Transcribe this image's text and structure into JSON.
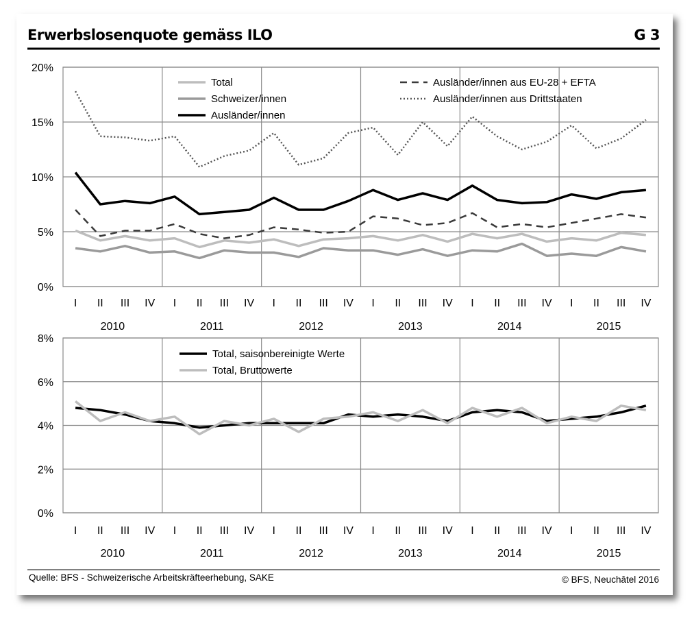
{
  "header": {
    "title": "Erwerbslosenquote gemäss ILO",
    "code": "G 3"
  },
  "footer": {
    "source": "Quelle: BFS - Schweizerische Arbeitskräfteerhebung, SAKE",
    "copyright": "© BFS, Neuchâtel 2016"
  },
  "colors": {
    "total": "#bdbdbd",
    "schweizer": "#9a9a9a",
    "auslaender": "#000000",
    "eu": "#3a3a3a",
    "dritt": "#555555",
    "grid": "#8a8a8a"
  },
  "chart_data": [
    {
      "type": "line",
      "x_quarters": [
        "I",
        "II",
        "III",
        "IV",
        "I",
        "II",
        "III",
        "IV",
        "I",
        "II",
        "III",
        "IV",
        "I",
        "II",
        "III",
        "IV",
        "I",
        "II",
        "III",
        "IV",
        "I",
        "II",
        "III",
        "IV"
      ],
      "x_years": [
        "2010",
        "2011",
        "2012",
        "2013",
        "2014",
        "2015"
      ],
      "y_ticks": [
        "0%",
        "5%",
        "10%",
        "15%",
        "20%"
      ],
      "ylim": [
        0,
        20
      ],
      "legend_position": "top",
      "series": [
        {
          "name": "Total",
          "style": "solid-light",
          "values": [
            5.1,
            4.2,
            4.6,
            4.2,
            4.4,
            3.6,
            4.2,
            4.0,
            4.3,
            3.7,
            4.3,
            4.4,
            4.6,
            4.2,
            4.7,
            4.1,
            4.8,
            4.4,
            4.8,
            4.1,
            4.4,
            4.2,
            4.9,
            4.7
          ]
        },
        {
          "name": "Schweizer/innen",
          "style": "solid-mid",
          "values": [
            3.5,
            3.2,
            3.7,
            3.1,
            3.2,
            2.6,
            3.3,
            3.1,
            3.1,
            2.7,
            3.5,
            3.3,
            3.3,
            2.9,
            3.4,
            2.8,
            3.3,
            3.2,
            3.9,
            2.8,
            3.0,
            2.8,
            3.6,
            3.2
          ]
        },
        {
          "name": "Ausländer/innen",
          "style": "solid-bold",
          "values": [
            10.4,
            7.5,
            7.8,
            7.6,
            8.2,
            6.6,
            6.8,
            7.0,
            8.1,
            7.0,
            7.0,
            7.8,
            8.8,
            7.9,
            8.5,
            7.9,
            9.2,
            7.9,
            7.6,
            7.7,
            8.4,
            8.0,
            8.6,
            8.8
          ]
        },
        {
          "name": "Ausländer/innen aus EU-28 + EFTA",
          "style": "dashed",
          "values": [
            7.0,
            4.6,
            5.1,
            5.1,
            5.7,
            4.8,
            4.4,
            4.7,
            5.4,
            5.2,
            4.9,
            5.0,
            6.4,
            6.2,
            5.6,
            5.8,
            6.7,
            5.4,
            5.7,
            5.4,
            5.8,
            6.2,
            6.6,
            6.3
          ]
        },
        {
          "name": "Ausländer/innen aus Drittstaaten",
          "style": "dotted",
          "values": [
            17.8,
            13.7,
            13.6,
            13.3,
            13.7,
            10.9,
            11.9,
            12.4,
            14.0,
            11.1,
            11.7,
            14.0,
            14.5,
            12.0,
            15.0,
            12.8,
            15.5,
            13.7,
            12.5,
            13.2,
            14.7,
            12.6,
            13.5,
            15.2
          ]
        }
      ]
    },
    {
      "type": "line",
      "x_quarters": [
        "I",
        "II",
        "III",
        "IV",
        "I",
        "II",
        "III",
        "IV",
        "I",
        "II",
        "III",
        "IV",
        "I",
        "II",
        "III",
        "IV",
        "I",
        "II",
        "III",
        "IV",
        "I",
        "II",
        "III",
        "IV"
      ],
      "x_years": [
        "2010",
        "2011",
        "2012",
        "2013",
        "2014",
        "2015"
      ],
      "y_ticks": [
        "0%",
        "2%",
        "4%",
        "6%",
        "8%"
      ],
      "ylim": [
        0,
        8
      ],
      "legend_position": "top",
      "series": [
        {
          "name": "Total, saisonbereinigte Werte",
          "style": "solid-bold",
          "values": [
            4.8,
            4.7,
            4.5,
            4.2,
            4.1,
            3.9,
            4.0,
            4.1,
            4.1,
            4.1,
            4.1,
            4.5,
            4.4,
            4.5,
            4.4,
            4.2,
            4.6,
            4.7,
            4.6,
            4.2,
            4.3,
            4.4,
            4.6,
            4.9
          ]
        },
        {
          "name": "Total, Bruttowerte",
          "style": "solid-light",
          "values": [
            5.1,
            4.2,
            4.6,
            4.2,
            4.4,
            3.6,
            4.2,
            4.0,
            4.3,
            3.7,
            4.3,
            4.4,
            4.6,
            4.2,
            4.7,
            4.1,
            4.8,
            4.4,
            4.8,
            4.1,
            4.4,
            4.2,
            4.9,
            4.7
          ]
        }
      ]
    }
  ]
}
